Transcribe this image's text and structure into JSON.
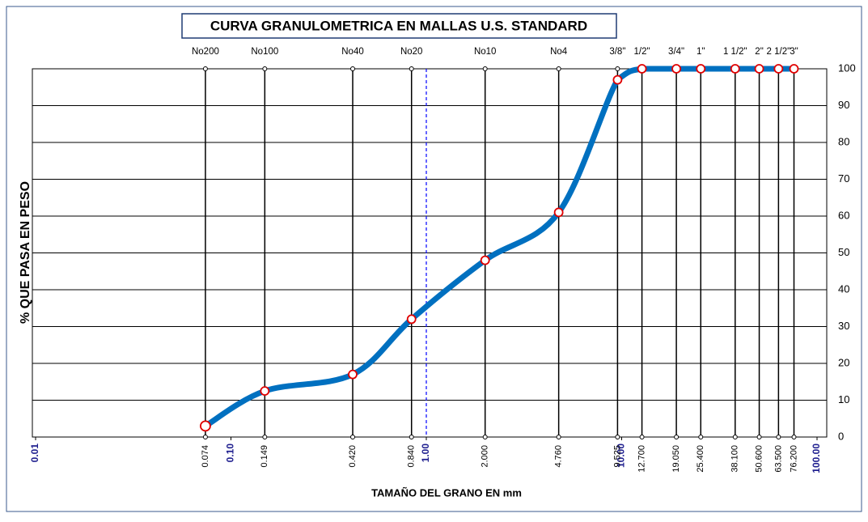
{
  "chart_data": {
    "type": "line",
    "title": "CURVA GRANULOMETRICA EN MALLAS U.S. STANDARD",
    "xlabel": "TAMAÑO   DEL GRANO EN mm",
    "ylabel": "% QUE PASA EN PESO",
    "x_scale": "log",
    "xlim": [
      0.01,
      100
    ],
    "ylim": [
      0,
      100
    ],
    "yticks": [
      0,
      10,
      20,
      30,
      40,
      50,
      60,
      70,
      80,
      90,
      100
    ],
    "xticks": [
      0.01,
      {
        "value": 0.1,
        "label": "0.10"
      },
      {
        "value": 1,
        "label": "1.00"
      },
      {
        "value": 10,
        "label": "10.00"
      },
      {
        "value": 100,
        "label": "100.00"
      }
    ],
    "sieve_names": [
      "No200",
      "No100",
      "No40",
      "No20",
      "No10",
      "No4",
      "3/8\"",
      "1/2\"",
      "3/4\"",
      "1\"",
      "1 1/2\"",
      "2\"",
      "2 1/2\"",
      "3\""
    ],
    "x": [
      0.074,
      0.149,
      0.42,
      0.84,
      2,
      4.76,
      9.525,
      12.7,
      19.05,
      25.4,
      38.1,
      50.6,
      63.5,
      76.2
    ],
    "x_labels": [
      "0.074",
      "0.149",
      "0.420",
      "0.840",
      "2.000",
      "4.760",
      "9.525",
      "12.700",
      "19.050",
      "25.400",
      "38.100",
      "50.600",
      "63.500",
      "76.200"
    ],
    "values": [
      3,
      12.5,
      17,
      32,
      48,
      61,
      97,
      100,
      100,
      100,
      100,
      100,
      100,
      100
    ],
    "color": "#0070c0",
    "marker_color": "#e00000",
    "vline": {
      "x": 1,
      "color": "#0000ff",
      "dash": true
    },
    "grid": true
  }
}
